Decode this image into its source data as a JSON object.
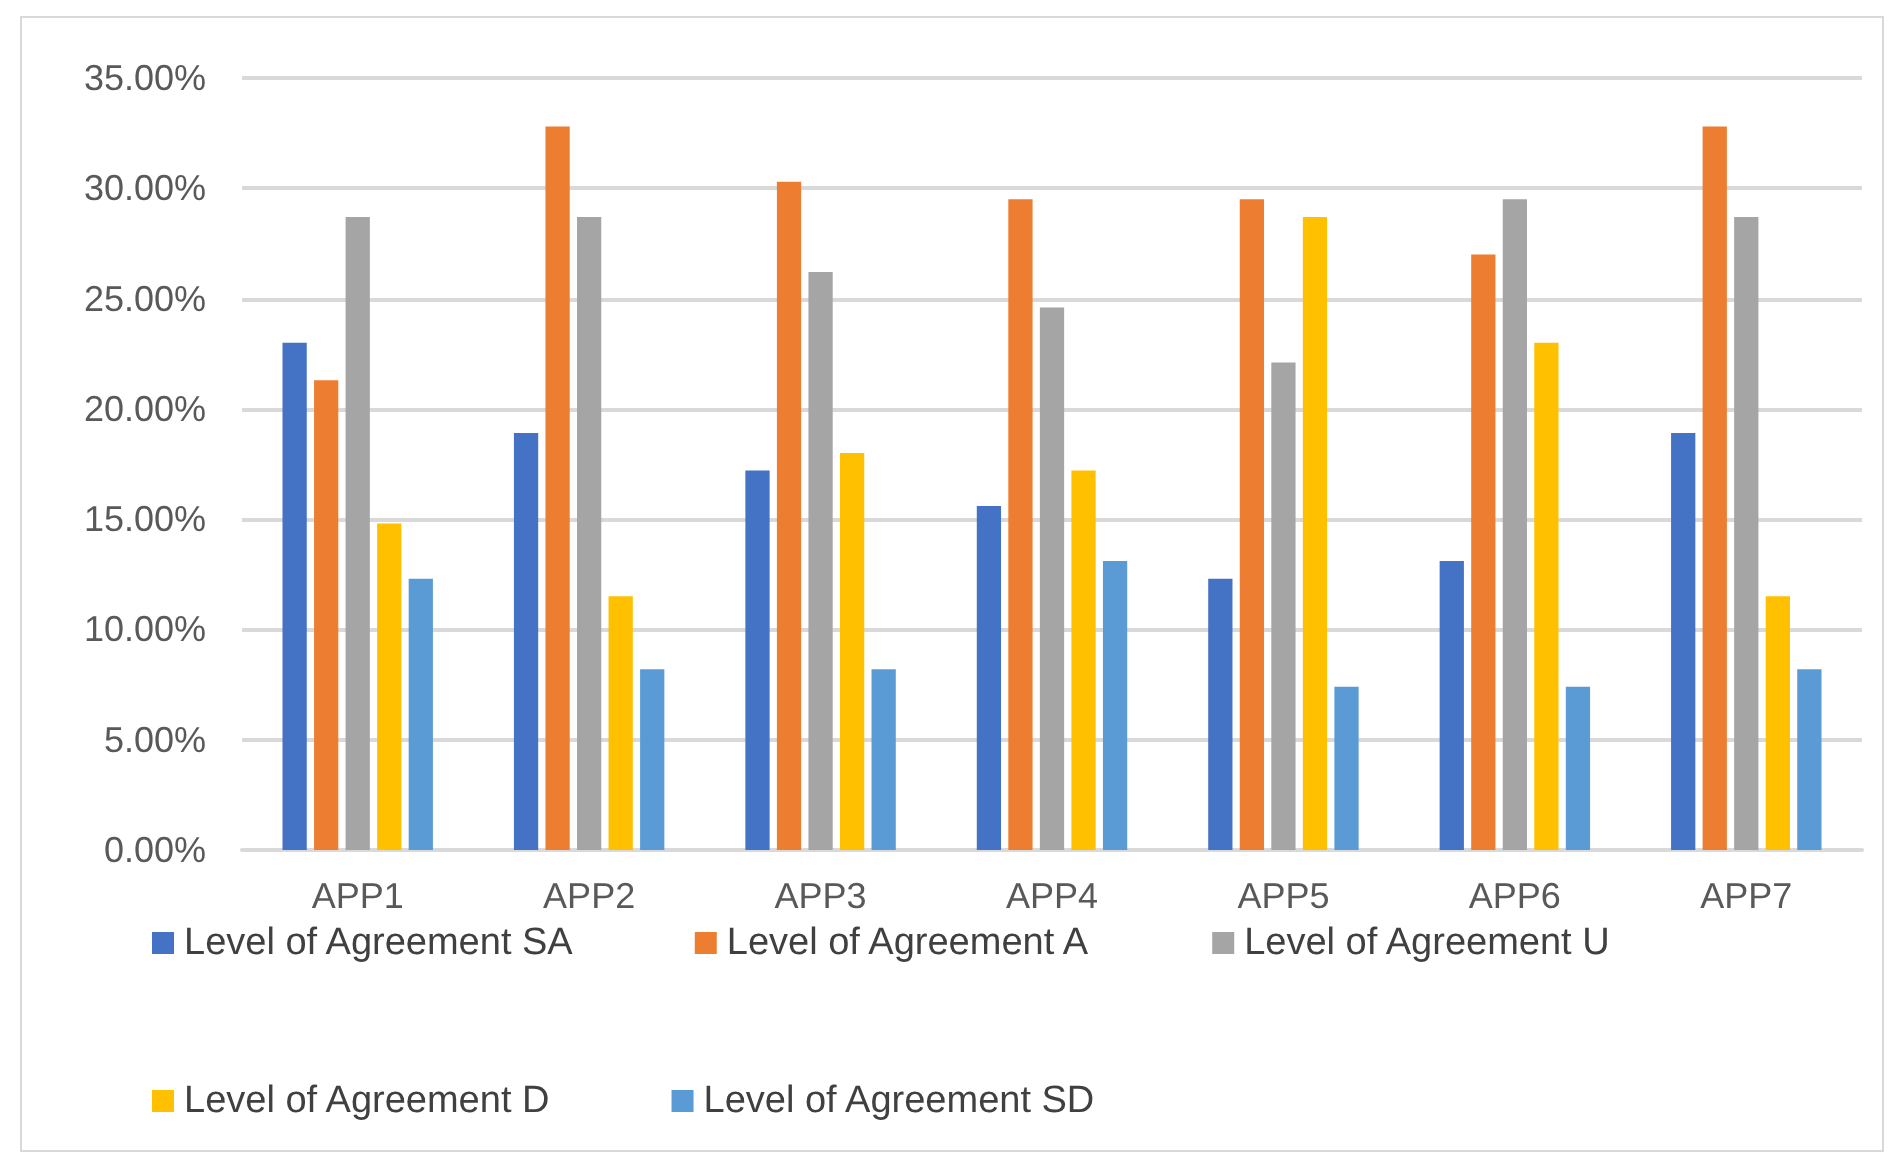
{
  "chart_data": {
    "type": "bar",
    "categories": [
      "APP1",
      "APP2",
      "APP3",
      "APP4",
      "APP5",
      "APP6",
      "APP7"
    ],
    "series": [
      {
        "name": "Level of Agreement SA",
        "color": "#4472c4",
        "values": [
          23.0,
          18.9,
          17.2,
          15.6,
          12.3,
          13.1,
          18.9
        ]
      },
      {
        "name": "Level of Agreement A",
        "color": "#ed7d31",
        "values": [
          21.3,
          32.8,
          30.3,
          29.5,
          29.5,
          27.0,
          32.8
        ]
      },
      {
        "name": "Level of Agreement U",
        "color": "#a5a5a5",
        "values": [
          28.7,
          28.7,
          26.2,
          24.6,
          22.1,
          29.5,
          28.7
        ]
      },
      {
        "name": "Level of Agreement D",
        "color": "#ffc000",
        "values": [
          14.8,
          11.5,
          18.0,
          17.2,
          28.7,
          23.0,
          11.5
        ]
      },
      {
        "name": "Level of Agreement SD",
        "color": "#5b9bd5",
        "values": [
          12.3,
          8.2,
          8.2,
          13.1,
          7.4,
          7.4,
          8.2
        ]
      }
    ],
    "ylim": [
      0,
      35
    ],
    "yticks": [
      {
        "value": 0,
        "label": "0.00%"
      },
      {
        "value": 5,
        "label": "5.00%"
      },
      {
        "value": 10,
        "label": "10.00%"
      },
      {
        "value": 15,
        "label": "15.00%"
      },
      {
        "value": 20,
        "label": "20.00%"
      },
      {
        "value": 25,
        "label": "25.00%"
      },
      {
        "value": 30,
        "label": "30.00%"
      },
      {
        "value": 35,
        "label": "35.00%"
      }
    ],
    "grid": "y",
    "legend": "bottom"
  }
}
